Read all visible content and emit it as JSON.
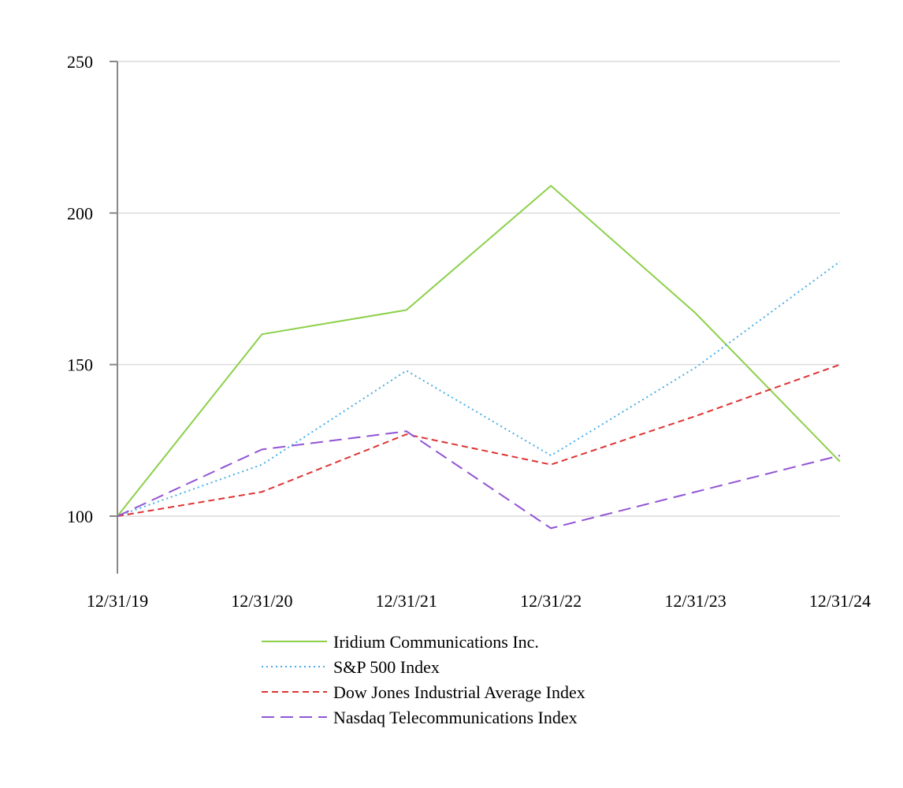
{
  "chart_data": {
    "type": "line",
    "title": "",
    "xlabel": "",
    "ylabel": "",
    "categories": [
      "12/31/19",
      "12/31/20",
      "12/31/21",
      "12/31/22",
      "12/31/23",
      "12/31/24"
    ],
    "yticks": [
      100,
      150,
      200,
      250
    ],
    "legend_position": "bottom",
    "grid": true,
    "series": [
      {
        "name": "Iridium Communications Inc.",
        "color": "#8CD04A",
        "style": "solid",
        "values": [
          100,
          160,
          168,
          209,
          167,
          118
        ]
      },
      {
        "name": "S&P 500 Index",
        "color": "#47AEE8",
        "style": "dotted",
        "values": [
          100,
          117,
          148,
          120,
          149,
          184
        ]
      },
      {
        "name": "Dow Jones Industrial Average Index",
        "color": "#DD3333",
        "style": "dashed",
        "values": [
          100,
          108,
          127,
          117,
          133,
          150
        ]
      },
      {
        "name": "Nasdaq Telecommunications Index",
        "color": "#9155D4",
        "style": "longdash",
        "values": [
          100,
          122,
          128,
          96,
          108,
          120
        ]
      }
    ]
  }
}
